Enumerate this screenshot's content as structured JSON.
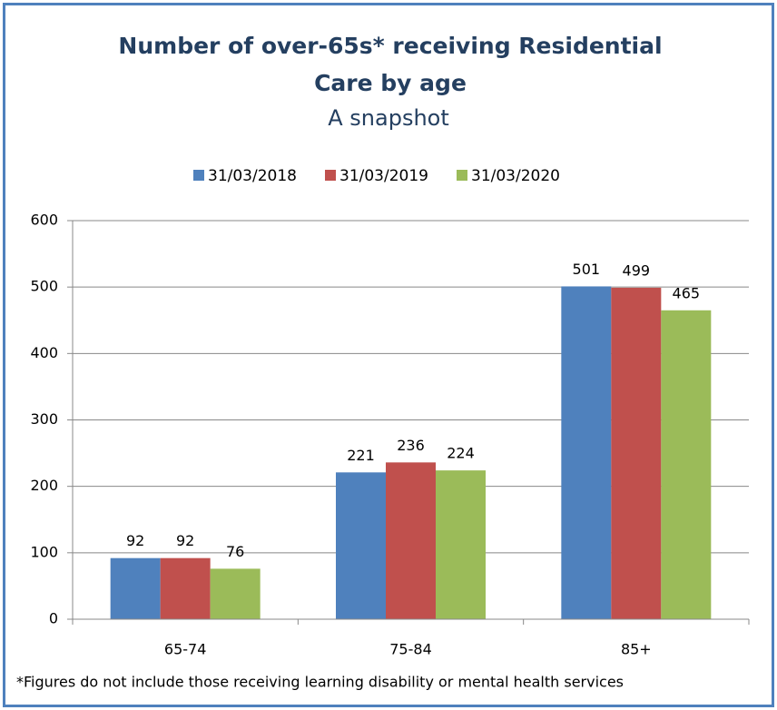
{
  "chart_data": {
    "type": "bar",
    "title": "Number of over-65s* receiving Residential Care by age",
    "subtitle": "A snapshot",
    "categories": [
      "65-74",
      "75-84",
      "85+"
    ],
    "series": [
      {
        "name": "31/03/2018",
        "color": "#4f81bd",
        "values": [
          92,
          221,
          501
        ]
      },
      {
        "name": "31/03/2019",
        "color": "#c0504d",
        "values": [
          92,
          236,
          499
        ]
      },
      {
        "name": "31/03/2020",
        "color": "#9bbb59",
        "values": [
          76,
          224,
          465
        ]
      }
    ],
    "ylim": [
      0,
      600
    ],
    "yticks": [
      0,
      100,
      200,
      300,
      400,
      500,
      600
    ],
    "grid": true,
    "legend": "top",
    "annotation": "*Figures do not include those receiving learning disability or mental health services"
  }
}
